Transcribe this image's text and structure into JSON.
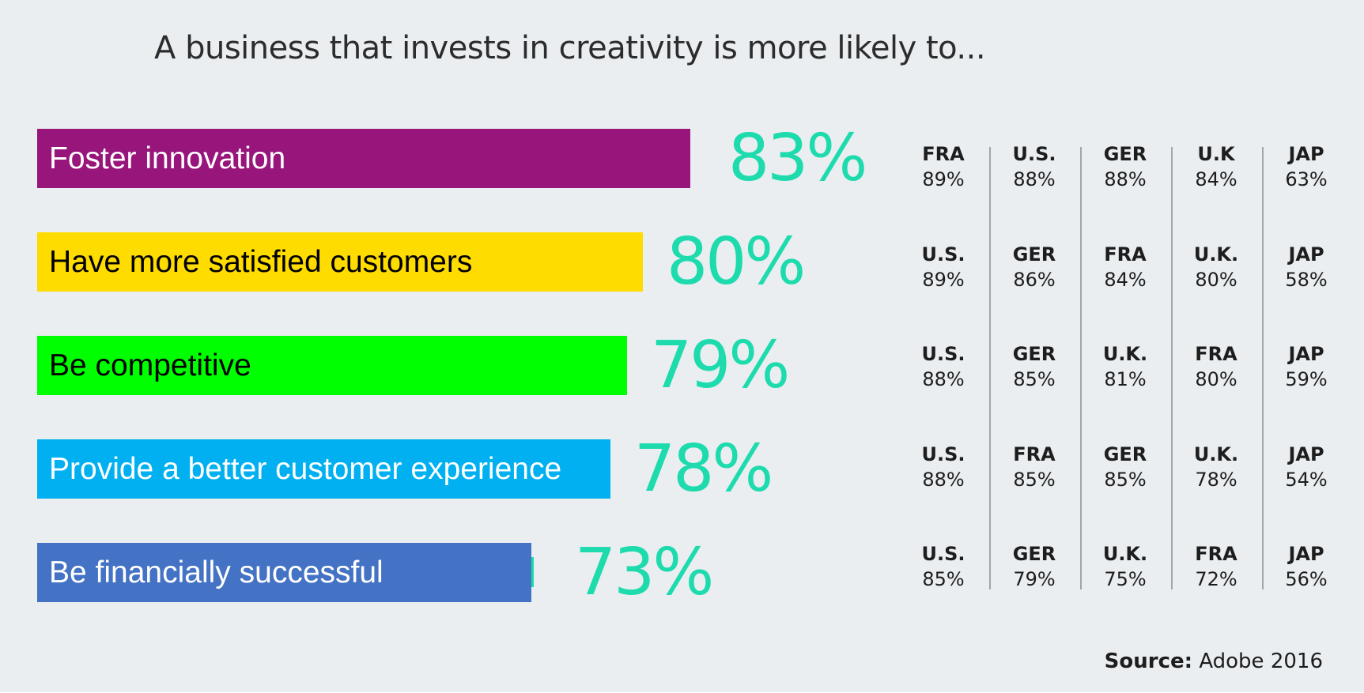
{
  "title": "A business that invests in creativity is more likely to...",
  "source": {
    "label": "Source:",
    "value": "Adobe 2016"
  },
  "colors": {
    "value_text": "#1ddbad",
    "bars": [
      "#98157c",
      "#ffdc00",
      "#00ff00",
      "#00b0f0",
      "#4472c4"
    ],
    "bar_labels": [
      "#ffffff",
      "#000000",
      "#000000",
      "#ffffff",
      "#ffffff"
    ]
  },
  "chart_data": {
    "type": "bar",
    "orientation": "horizontal",
    "title": "A business that invests in creativity is more likely to...",
    "categories": [
      "Foster innovation",
      "Have more satisfied customers",
      "Be competitive",
      "Provide a better customer experience",
      "Be financially successful"
    ],
    "values": [
      83,
      80,
      79,
      78,
      73
    ],
    "value_labels": [
      "83%",
      "80%",
      "79%",
      "78%",
      "73%"
    ],
    "unit": "%",
    "country_breakdown": [
      [
        {
          "country": "FRA",
          "value": "89%"
        },
        {
          "country": "U.S.",
          "value": "88%"
        },
        {
          "country": "GER",
          "value": "88%"
        },
        {
          "country": "U.K",
          "value": "84%"
        },
        {
          "country": "JAP",
          "value": "63%"
        }
      ],
      [
        {
          "country": "U.S.",
          "value": "89%"
        },
        {
          "country": "GER",
          "value": "86%"
        },
        {
          "country": "FRA",
          "value": "84%"
        },
        {
          "country": "U.K.",
          "value": "80%"
        },
        {
          "country": "JAP",
          "value": "58%"
        }
      ],
      [
        {
          "country": "U.S.",
          "value": "88%"
        },
        {
          "country": "GER",
          "value": "85%"
        },
        {
          "country": "U.K.",
          "value": "81%"
        },
        {
          "country": "FRA",
          "value": "80%"
        },
        {
          "country": "JAP",
          "value": "59%"
        }
      ],
      [
        {
          "country": "U.S.",
          "value": "88%"
        },
        {
          "country": "FRA",
          "value": "85%"
        },
        {
          "country": "GER",
          "value": "85%"
        },
        {
          "country": "U.K.",
          "value": "78%"
        },
        {
          "country": "JAP",
          "value": "54%"
        }
      ],
      [
        {
          "country": "U.S.",
          "value": "85%"
        },
        {
          "country": "GER",
          "value": "79%"
        },
        {
          "country": "U.K.",
          "value": "75%"
        },
        {
          "country": "FRA",
          "value": "72%"
        },
        {
          "country": "JAP",
          "value": "56%"
        }
      ]
    ]
  }
}
